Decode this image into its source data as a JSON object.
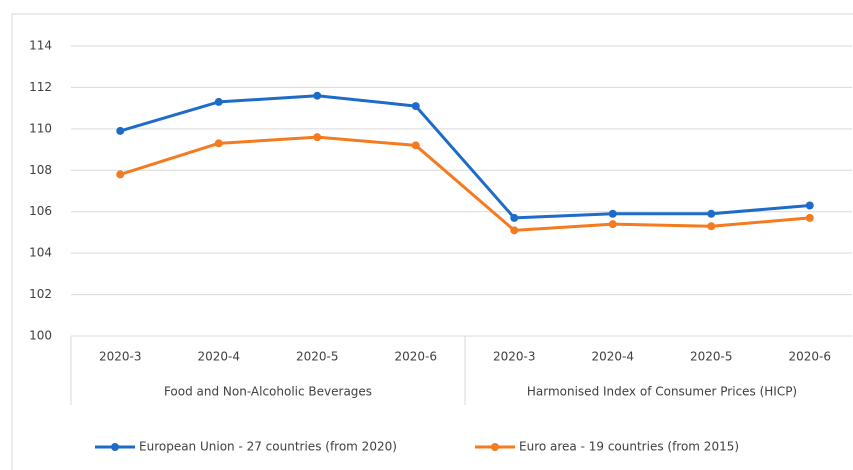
{
  "chart_data": {
    "type": "line",
    "categories": [
      "2020-3",
      "2020-4",
      "2020-5",
      "2020-6",
      "2020-3",
      "2020-4",
      "2020-5",
      "2020-6"
    ],
    "groups": [
      "Food and Non-Alcoholic Beverages",
      "Harmonised Index of Consumer Prices (HICP)"
    ],
    "series": [
      {
        "name": "European Union - 27 countries (from 2020)",
        "color": "#1f6cc8",
        "values": [
          109.9,
          111.3,
          111.6,
          111.1,
          105.7,
          105.9,
          105.9,
          106.3
        ]
      },
      {
        "name": "Euro area - 19 countries  (from 2015)",
        "color": "#f47b20",
        "values": [
          107.8,
          109.3,
          109.6,
          109.2,
          105.1,
          105.4,
          105.3,
          105.7
        ]
      }
    ],
    "ylim": [
      100,
      114
    ],
    "yticks": [
      100,
      102,
      104,
      106,
      108,
      110,
      112,
      114
    ],
    "grid": true,
    "legend": "bottom"
  }
}
